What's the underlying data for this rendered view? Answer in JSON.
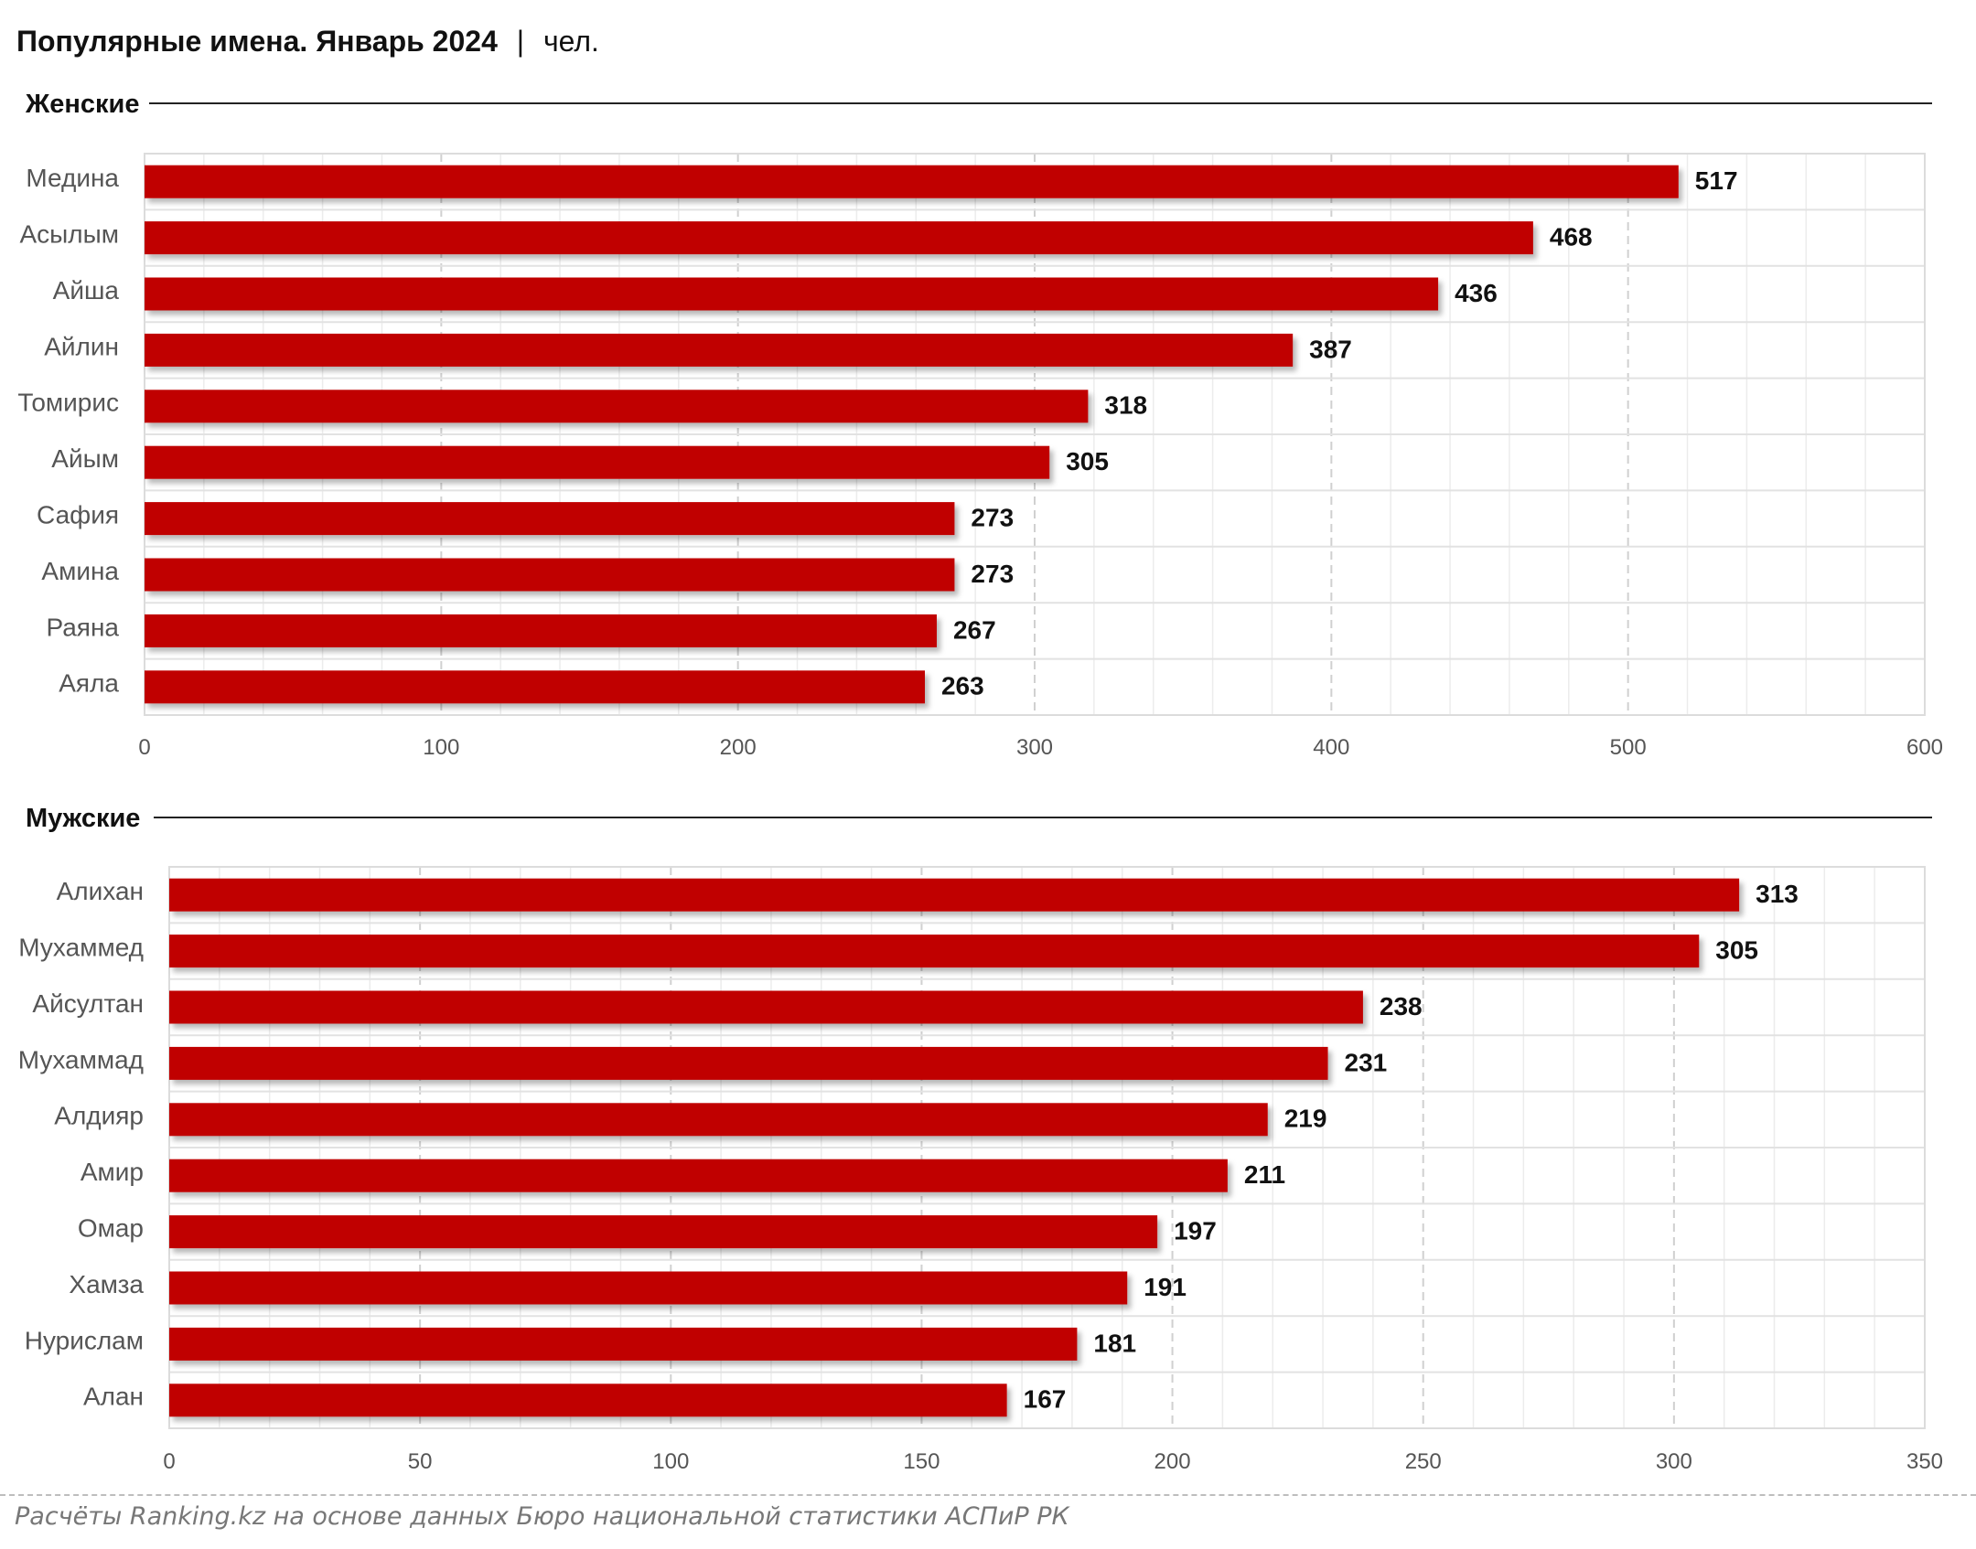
{
  "header": {
    "title": "Популярные имена. Январь 2024",
    "separator": "|",
    "unit": "чел."
  },
  "footer": {
    "source": "Расчёты Ranking.kz на основе данных Бюро национальной статистики АСПиР РК"
  },
  "colors": {
    "bar": "#c00000",
    "grid_major": "#d0d0d0",
    "grid_minor": "#ececec",
    "text": "#555555",
    "label": "#111111"
  },
  "chart_data": [
    {
      "type": "bar",
      "orientation": "horizontal",
      "title": "Женские",
      "categories": [
        "Медина",
        "Асылым",
        "Айша",
        "Айлин",
        "Томирис",
        "Айым",
        "Сафия",
        "Амина",
        "Раяна",
        "Аяла"
      ],
      "values": [
        517,
        468,
        436,
        387,
        318,
        305,
        273,
        273,
        267,
        263
      ],
      "xlim": [
        0,
        600
      ],
      "xticks": [
        0,
        100,
        200,
        300,
        400,
        500,
        600
      ],
      "tick_labels": [
        "0",
        "100",
        "200",
        "300",
        "400",
        "500",
        "600"
      ],
      "grid": true
    },
    {
      "type": "bar",
      "orientation": "horizontal",
      "title": "Мужские",
      "categories": [
        "Алихан",
        "Мухаммед",
        "Айсултан",
        "Мухаммад",
        "Алдияр",
        "Амир",
        "Омар",
        "Хамза",
        "Нурислам",
        "Алан"
      ],
      "values": [
        313,
        305,
        238,
        231,
        219,
        211,
        197,
        191,
        181,
        167
      ],
      "xlim": [
        0,
        350
      ],
      "xticks": [
        0,
        50,
        100,
        150,
        200,
        250,
        300,
        350
      ],
      "tick_labels": [
        "0",
        "50",
        "100",
        "150",
        "200",
        "250",
        "300",
        "350"
      ],
      "grid": true
    }
  ]
}
